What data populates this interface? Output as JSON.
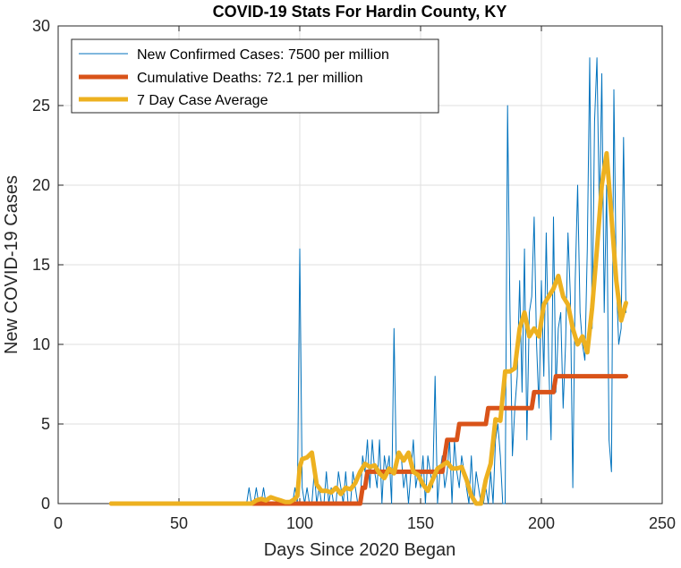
{
  "chart_data": {
    "type": "line",
    "title": "COVID-19 Stats For Hardin County, KY",
    "xlabel": "Days Since 2020 Began",
    "ylabel": "New COVID-19 Cases",
    "xlim": [
      0,
      250
    ],
    "ylim": [
      0,
      30
    ],
    "xticks": [
      0,
      50,
      100,
      150,
      200,
      250
    ],
    "yticks": [
      0,
      5,
      10,
      15,
      20,
      25,
      30
    ],
    "grid": true,
    "legend_position": "top-left",
    "series": [
      {
        "name": "New Confirmed Cases: 7500 per million",
        "color": "#0072BD",
        "x": [
          22,
          40,
          60,
          78,
          79,
          80,
          81,
          82,
          83,
          84,
          85,
          86,
          87,
          88,
          89,
          90,
          91,
          92,
          93,
          94,
          95,
          96,
          97,
          98,
          99,
          100,
          101,
          102,
          103,
          104,
          105,
          106,
          107,
          108,
          109,
          110,
          111,
          112,
          113,
          114,
          115,
          116,
          117,
          118,
          119,
          120,
          121,
          122,
          123,
          124,
          125,
          126,
          127,
          128,
          129,
          130,
          131,
          132,
          133,
          134,
          135,
          136,
          137,
          138,
          139,
          140,
          141,
          142,
          143,
          144,
          145,
          146,
          147,
          148,
          149,
          150,
          151,
          152,
          153,
          154,
          155,
          156,
          157,
          158,
          159,
          160,
          161,
          162,
          163,
          164,
          165,
          166,
          167,
          168,
          169,
          170,
          171,
          172,
          173,
          174,
          175,
          176,
          177,
          178,
          179,
          180,
          181,
          182,
          183,
          184,
          185,
          186,
          187,
          188,
          189,
          190,
          191,
          192,
          193,
          194,
          195,
          196,
          197,
          198,
          199,
          200,
          201,
          202,
          203,
          204,
          205,
          206,
          207,
          208,
          209,
          210,
          211,
          212,
          213,
          214,
          215,
          216,
          217,
          218,
          219,
          220,
          221,
          222,
          223,
          224,
          225,
          226,
          227,
          228,
          229,
          230,
          231,
          232,
          233,
          234,
          235
        ],
        "y": [
          0,
          0,
          0,
          0,
          1,
          0,
          0,
          1,
          0,
          0,
          1,
          0,
          0,
          0,
          0,
          0,
          0,
          0,
          0,
          0,
          0,
          0,
          0,
          1,
          0,
          16,
          1,
          0,
          1,
          0,
          0,
          2,
          0,
          1,
          0,
          0,
          2,
          0,
          1,
          0,
          0,
          2,
          1,
          0,
          2,
          0,
          0,
          2,
          1,
          0,
          0,
          3,
          2,
          4,
          1,
          4,
          2,
          1,
          4,
          0,
          3,
          2,
          3,
          0,
          11,
          2,
          3,
          3,
          1,
          2,
          0,
          2,
          4,
          1,
          2,
          1,
          3,
          0,
          3,
          2,
          1,
          8,
          0,
          2,
          3,
          1,
          2,
          4,
          0,
          4,
          2,
          1,
          3,
          2,
          1,
          0,
          3,
          0,
          2,
          1,
          0,
          0,
          1,
          0,
          2,
          0,
          4,
          5,
          3,
          0,
          0,
          25,
          12,
          3,
          6,
          8,
          14,
          7,
          16,
          4,
          12,
          13,
          18,
          10,
          6,
          14,
          8,
          17,
          9,
          4,
          18,
          7,
          11,
          12,
          6,
          10,
          17,
          13,
          1,
          14,
          20,
          12,
          10,
          9,
          16,
          28,
          11,
          24,
          28,
          18,
          27,
          12,
          20,
          4,
          2,
          26,
          14,
          10,
          11,
          23,
          12
        ]
      },
      {
        "name": "Cumulative Deaths: 72.1 per million",
        "color": "#D95319",
        "x": [
          22,
          84,
          85,
          87,
          89,
          124,
          125,
          126,
          127,
          128,
          159,
          160,
          161,
          165,
          166,
          170,
          171,
          177,
          178,
          187,
          188,
          196,
          197,
          205,
          206,
          210,
          220,
          230,
          235
        ],
        "y": [
          0,
          0,
          0,
          0,
          0,
          0,
          0,
          1,
          1,
          2,
          2,
          3,
          4,
          4,
          5,
          5,
          5,
          5,
          6,
          6,
          6,
          6,
          7,
          7,
          8,
          8,
          8,
          8,
          8
        ]
      },
      {
        "name": "7 Day Case Average",
        "color": "#EDB120",
        "x": [
          22,
          40,
          60,
          80,
          82,
          84,
          86,
          88,
          90,
          92,
          94,
          96,
          98,
          99,
          100,
          101,
          103,
          105,
          107,
          109,
          111,
          113,
          115,
          117,
          119,
          121,
          123,
          125,
          127,
          129,
          131,
          133,
          135,
          137,
          139,
          141,
          143,
          145,
          147,
          149,
          151,
          153,
          155,
          157,
          159,
          161,
          163,
          165,
          167,
          169,
          171,
          173,
          175,
          177,
          179,
          181,
          183,
          185,
          187,
          189,
          191,
          193,
          195,
          197,
          199,
          201,
          203,
          205,
          207,
          209,
          211,
          213,
          215,
          217,
          219,
          221,
          223,
          225,
          227,
          229,
          231,
          233,
          235
        ],
        "y": [
          0,
          0,
          0,
          0,
          0.2,
          0.3,
          0.2,
          0.4,
          0.3,
          0.2,
          0.1,
          0.1,
          0.3,
          0.5,
          2.3,
          2.8,
          2.9,
          3.2,
          1.2,
          0.8,
          0.8,
          0.7,
          1,
          0.6,
          1,
          0.9,
          1.3,
          2,
          2.5,
          2.3,
          2.4,
          1.9,
          1.6,
          2.2,
          1.9,
          3.2,
          2.7,
          3.2,
          2,
          1.8,
          1.2,
          0.8,
          1.5,
          2.2,
          2.4,
          2.6,
          2.2,
          2.2,
          2.3,
          1.5,
          0.5,
          0,
          0,
          1.5,
          2.5,
          5.3,
          5.2,
          8.3,
          8.3,
          8.5,
          11,
          12,
          10.5,
          11,
          10.5,
          12.5,
          13,
          13.5,
          14.3,
          13,
          12.5,
          11,
          10,
          10.5,
          9.5,
          12.3,
          16,
          20,
          22,
          18,
          14,
          11.5,
          12.6
        ]
      }
    ]
  }
}
